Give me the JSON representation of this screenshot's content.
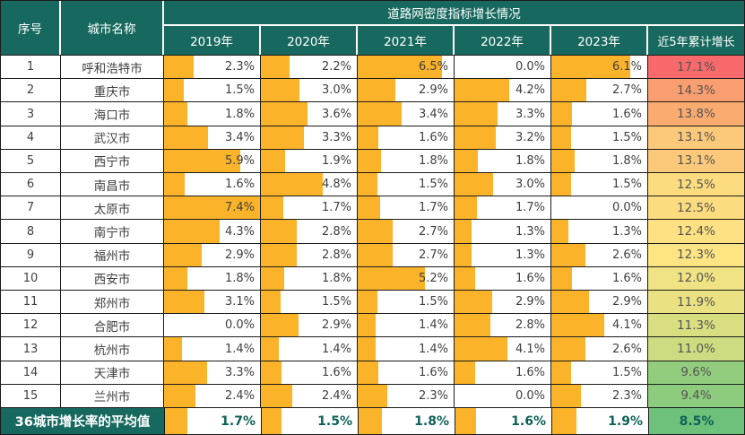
{
  "chart_data": {
    "type": "table",
    "title": "道路网密度指标增长情况",
    "unit": "%",
    "header": {
      "sn": "序号",
      "city": "城市名称",
      "years": [
        "2019年",
        "2020年",
        "2021年",
        "2022年",
        "2023年"
      ],
      "cumulative": "近5年累计增长"
    },
    "bar_scale_max": 7.4,
    "colors": {
      "header_bg": "#17695F",
      "bar": "#FBB329",
      "grid": "#1b1b1b",
      "value_text": "#3f3f3f",
      "average_text": "#0d6157"
    },
    "rows": [
      {
        "sn": "1",
        "city": "呼和浩特市",
        "values": [
          "2.3%",
          "2.2%",
          "6.5%",
          "0.0%",
          "6.1%"
        ],
        "cumulative": "17.1%",
        "cum_color": "#F8696B"
      },
      {
        "sn": "2",
        "city": "重庆市",
        "values": [
          "1.5%",
          "3.0%",
          "2.9%",
          "4.2%",
          "2.7%"
        ],
        "cumulative": "14.3%",
        "cum_color": "#F99E6F"
      },
      {
        "sn": "3",
        "city": "海口市",
        "values": [
          "1.8%",
          "3.6%",
          "3.4%",
          "3.3%",
          "1.6%"
        ],
        "cumulative": "13.8%",
        "cum_color": "#FAAB70"
      },
      {
        "sn": "4",
        "city": "武汉市",
        "values": [
          "3.4%",
          "3.3%",
          "1.6%",
          "3.2%",
          "1.5%"
        ],
        "cumulative": "13.1%",
        "cum_color": "#FBC979"
      },
      {
        "sn": "5",
        "city": "西宁市",
        "values": [
          "5.9%",
          "1.9%",
          "1.8%",
          "1.8%",
          "1.8%"
        ],
        "cumulative": "13.1%",
        "cum_color": "#FBC979"
      },
      {
        "sn": "6",
        "city": "南昌市",
        "values": [
          "1.6%",
          "4.8%",
          "1.5%",
          "3.0%",
          "1.5%"
        ],
        "cumulative": "12.5%",
        "cum_color": "#FDDC80"
      },
      {
        "sn": "7",
        "city": "太原市",
        "values": [
          "7.4%",
          "1.7%",
          "1.7%",
          "1.7%",
          "0.0%"
        ],
        "cumulative": "12.5%",
        "cum_color": "#FDDC80"
      },
      {
        "sn": "8",
        "city": "南宁市",
        "values": [
          "4.3%",
          "2.8%",
          "2.7%",
          "1.3%",
          "1.3%"
        ],
        "cumulative": "12.4%",
        "cum_color": "#FEE182"
      },
      {
        "sn": "9",
        "city": "福州市",
        "values": [
          "2.9%",
          "2.8%",
          "2.7%",
          "1.3%",
          "2.6%"
        ],
        "cumulative": "12.3%",
        "cum_color": "#FEE483"
      },
      {
        "sn": "10",
        "city": "西安市",
        "values": [
          "1.8%",
          "1.8%",
          "5.2%",
          "1.6%",
          "1.6%"
        ],
        "cumulative": "12.0%",
        "cum_color": "#F0E383"
      },
      {
        "sn": "11",
        "city": "郑州市",
        "values": [
          "3.1%",
          "1.5%",
          "1.5%",
          "2.9%",
          "2.9%"
        ],
        "cumulative": "11.9%",
        "cum_color": "#EAE282"
      },
      {
        "sn": "12",
        "city": "合肥市",
        "values": [
          "0.0%",
          "2.9%",
          "1.4%",
          "2.8%",
          "4.1%"
        ],
        "cumulative": "11.3%",
        "cum_color": "#D9DF81"
      },
      {
        "sn": "13",
        "city": "杭州市",
        "values": [
          "1.4%",
          "1.4%",
          "1.4%",
          "4.1%",
          "2.6%"
        ],
        "cumulative": "11.0%",
        "cum_color": "#CDDC80"
      },
      {
        "sn": "14",
        "city": "天津市",
        "values": [
          "3.3%",
          "1.6%",
          "1.6%",
          "1.6%",
          "1.5%"
        ],
        "cumulative": "9.6%",
        "cum_color": "#92CD7E"
      },
      {
        "sn": "15",
        "city": "兰州市",
        "values": [
          "2.4%",
          "2.4%",
          "2.3%",
          "0.0%",
          "2.3%"
        ],
        "cumulative": "9.4%",
        "cum_color": "#8DCB7D"
      }
    ],
    "average_row": {
      "label": "36城市增长率的平均值",
      "values": [
        "1.7%",
        "1.5%",
        "1.8%",
        "1.6%",
        "1.9%"
      ],
      "cumulative": "8.5%",
      "cum_color": "#6EC17B"
    }
  }
}
